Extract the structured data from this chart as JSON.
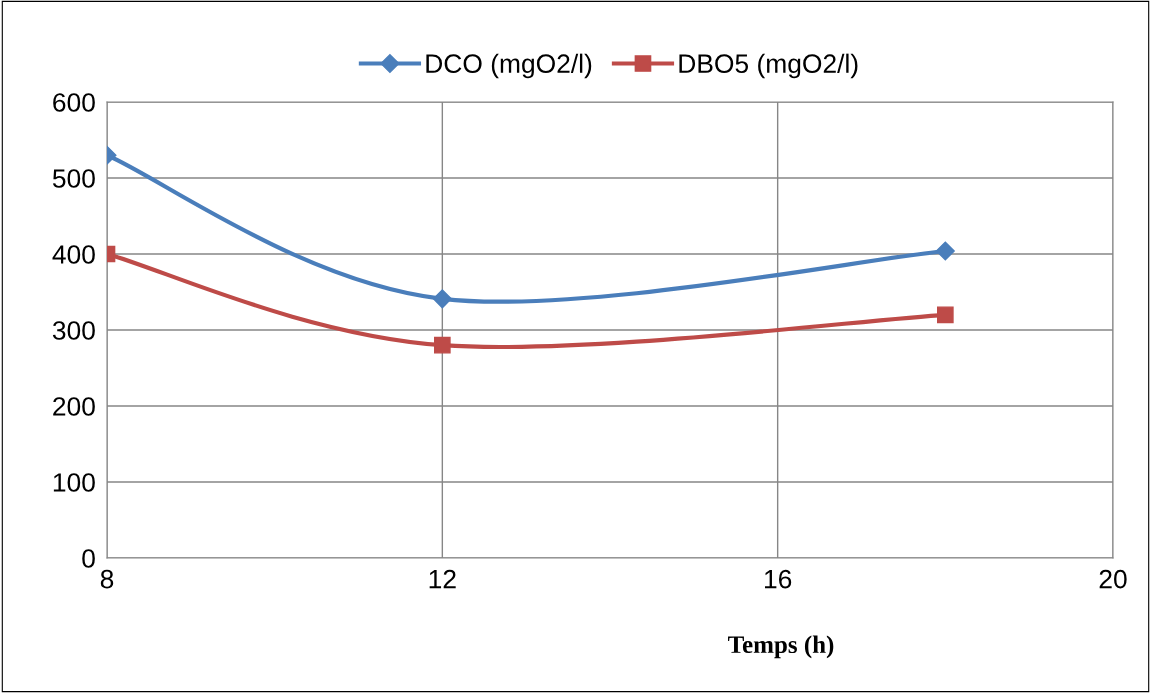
{
  "chart_data": {
    "type": "line",
    "xlabel": "Temps (h)",
    "x": [
      8,
      12,
      18
    ],
    "series": [
      {
        "name": "DCO (mgO2/l)",
        "color": "#4a7ebb",
        "marker": "diamond",
        "values": [
          530,
          341,
          404
        ]
      },
      {
        "name": "DBO5 (mgO2/l)",
        "color": "#be4b48",
        "marker": "square",
        "values": [
          400,
          280,
          320
        ]
      }
    ],
    "xlim": [
      8,
      20
    ],
    "xticks": [
      8,
      12,
      16,
      20
    ],
    "ylim": [
      0,
      600
    ],
    "yticks": [
      0,
      100,
      200,
      300,
      400,
      500,
      600
    ],
    "grid": true,
    "legend": "top",
    "line_style": "solid"
  }
}
